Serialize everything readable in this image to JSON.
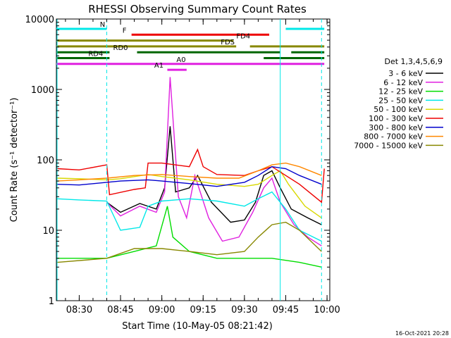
{
  "chart_data": {
    "type": "line",
    "title": "RHESSI Observing Summary Count Rates",
    "xlabel": "Start Time (10-May-05 08:21:42)",
    "ylabel": "Count Rate (s⁻¹ detector⁻¹)",
    "footer": "16-Oct-2021 20:28",
    "y_scale": "log",
    "ylim": [
      1,
      10000
    ],
    "xlim": [
      "08:21:42",
      "10:01"
    ],
    "x_ticks": [
      "08:30",
      "08:45",
      "09:00",
      "09:15",
      "09:30",
      "09:45",
      "10:00"
    ],
    "y_ticks": [
      "1",
      "10",
      "100",
      "1000",
      "10000"
    ],
    "legend_title": "Det 1,3,4,5,6,9",
    "legend_position": "right",
    "series": [
      {
        "name": "3 - 6 keV",
        "color": "#000000",
        "points": [
          [
            "08:40",
            25
          ],
          [
            "08:45",
            18
          ],
          [
            "08:52",
            24
          ],
          [
            "08:58",
            20
          ],
          [
            "09:01",
            40
          ],
          [
            "09:03",
            300
          ],
          [
            "09:05",
            35
          ],
          [
            "09:10",
            40
          ],
          [
            "09:13",
            60
          ],
          [
            "09:18",
            25
          ],
          [
            "09:25",
            13
          ],
          [
            "09:30",
            14
          ],
          [
            "09:34",
            25
          ],
          [
            "09:37",
            60
          ],
          [
            "09:40",
            70
          ],
          [
            "09:43",
            40
          ],
          [
            "09:47",
            20
          ],
          [
            "09:53",
            15
          ],
          [
            "09:58",
            12
          ]
        ]
      },
      {
        "name": "6 - 12 keV",
        "color": "#e020e0",
        "points": [
          [
            "08:40",
            25
          ],
          [
            "08:45",
            16
          ],
          [
            "08:52",
            22
          ],
          [
            "08:58",
            18
          ],
          [
            "09:01",
            35
          ],
          [
            "09:03",
            1500
          ],
          [
            "09:06",
            30
          ],
          [
            "09:09",
            15
          ],
          [
            "09:12",
            60
          ],
          [
            "09:17",
            15
          ],
          [
            "09:22",
            7
          ],
          [
            "09:28",
            8
          ],
          [
            "09:33",
            18
          ],
          [
            "09:37",
            40
          ],
          [
            "09:40",
            55
          ],
          [
            "09:43",
            25
          ],
          [
            "09:48",
            12
          ],
          [
            "09:53",
            8
          ],
          [
            "09:58",
            6
          ]
        ]
      },
      {
        "name": "12 - 25 keV",
        "color": "#00dd00",
        "points": [
          [
            "08:22",
            4
          ],
          [
            "08:40",
            4
          ],
          [
            "08:50",
            5
          ],
          [
            "08:58",
            6
          ],
          [
            "09:02",
            22
          ],
          [
            "09:04",
            8
          ],
          [
            "09:10",
            5
          ],
          [
            "09:20",
            4
          ],
          [
            "09:30",
            4
          ],
          [
            "09:40",
            4
          ],
          [
            "09:50",
            3.5
          ],
          [
            "09:58",
            3
          ]
        ]
      },
      {
        "name": "25 - 50 keV",
        "color": "#00e8e8",
        "points": [
          [
            "08:22",
            28
          ],
          [
            "08:30",
            27
          ],
          [
            "08:40",
            26
          ],
          [
            "08:45",
            10
          ],
          [
            "08:52",
            11
          ],
          [
            "08:55",
            22
          ],
          [
            "09:00",
            26
          ],
          [
            "09:10",
            28
          ],
          [
            "09:20",
            26
          ],
          [
            "09:30",
            22
          ],
          [
            "09:35",
            28
          ],
          [
            "09:40",
            35
          ],
          [
            "09:45",
            20
          ],
          [
            "09:50",
            10
          ],
          [
            "09:58",
            7
          ]
        ]
      },
      {
        "name": "50 - 100 keV",
        "color": "#d8d800",
        "points": [
          [
            "08:22",
            55
          ],
          [
            "08:30",
            54
          ],
          [
            "08:40",
            52
          ],
          [
            "08:45",
            54
          ],
          [
            "08:55",
            62
          ],
          [
            "09:00",
            58
          ],
          [
            "09:10",
            52
          ],
          [
            "09:20",
            45
          ],
          [
            "09:30",
            42
          ],
          [
            "09:35",
            45
          ],
          [
            "09:40",
            60
          ],
          [
            "09:43",
            70
          ],
          [
            "09:46",
            45
          ],
          [
            "09:52",
            22
          ],
          [
            "09:58",
            15
          ]
        ]
      },
      {
        "name": "100 - 300 keV",
        "color": "#ee0000",
        "points": [
          [
            "08:22",
            75
          ],
          [
            "08:30",
            72
          ],
          [
            "08:40",
            85
          ],
          [
            "08:41",
            32
          ],
          [
            "08:50",
            38
          ],
          [
            "08:54",
            40
          ],
          [
            "08:55",
            90
          ],
          [
            "09:00",
            90
          ],
          [
            "09:10",
            80
          ],
          [
            "09:13",
            140
          ],
          [
            "09:15",
            80
          ],
          [
            "09:20",
            62
          ],
          [
            "09:30",
            60
          ],
          [
            "09:35",
            70
          ],
          [
            "09:40",
            80
          ],
          [
            "09:50",
            45
          ],
          [
            "09:58",
            25
          ],
          [
            "09:59",
            75
          ]
        ]
      },
      {
        "name": "300 - 800 keV",
        "color": "#0000cc",
        "points": [
          [
            "08:22",
            45
          ],
          [
            "08:30",
            44
          ],
          [
            "08:40",
            48
          ],
          [
            "08:45",
            50
          ],
          [
            "08:55",
            52
          ],
          [
            "09:00",
            50
          ],
          [
            "09:10",
            46
          ],
          [
            "09:20",
            42
          ],
          [
            "09:30",
            48
          ],
          [
            "09:35",
            60
          ],
          [
            "09:40",
            80
          ],
          [
            "09:45",
            75
          ],
          [
            "09:50",
            60
          ],
          [
            "09:58",
            45
          ]
        ]
      },
      {
        "name": "800 - 7000 keV",
        "color": "#ff8800",
        "points": [
          [
            "08:22",
            50
          ],
          [
            "08:30",
            52
          ],
          [
            "08:40",
            55
          ],
          [
            "08:50",
            60
          ],
          [
            "09:00",
            62
          ],
          [
            "09:10",
            58
          ],
          [
            "09:20",
            55
          ],
          [
            "09:28",
            55
          ],
          [
            "09:35",
            70
          ],
          [
            "09:40",
            85
          ],
          [
            "09:45",
            90
          ],
          [
            "09:50",
            80
          ],
          [
            "09:58",
            60
          ]
        ]
      },
      {
        "name": "7000 - 15000 keV",
        "color": "#888800",
        "points": [
          [
            "08:22",
            3.5
          ],
          [
            "08:40",
            4
          ],
          [
            "08:50",
            5.5
          ],
          [
            "09:00",
            5.5
          ],
          [
            "09:10",
            5
          ],
          [
            "09:20",
            4.5
          ],
          [
            "09:30",
            5
          ],
          [
            "09:35",
            8
          ],
          [
            "09:40",
            12
          ],
          [
            "09:45",
            13
          ],
          [
            "09:50",
            10
          ],
          [
            "09:58",
            5
          ]
        ]
      }
    ],
    "flag_bars": [
      {
        "label": "N",
        "color": "#00e8e8",
        "level": 11,
        "segments": [
          [
            "08:21:42",
            "08:40"
          ],
          [
            "09:45",
            "09:59"
          ]
        ]
      },
      {
        "label": "F",
        "color": "#ee0000",
        "level": 10,
        "segments": [
          [
            "08:49",
            "09:39"
          ]
        ]
      },
      {
        "label": "FD4",
        "color": "#888800",
        "level": 9,
        "segments": [
          [
            "08:21:42",
            "09:26"
          ]
        ]
      },
      {
        "label": "FDS",
        "color": "#888800",
        "level": 8,
        "segments": [
          [
            "08:21:42",
            "09:27"
          ],
          [
            "09:32",
            "09:59"
          ]
        ]
      },
      {
        "label": "RD0",
        "color": "#006600",
        "level": 7,
        "segments": [
          [
            "08:21:42",
            "08:41"
          ],
          [
            "08:51",
            "09:43"
          ],
          [
            "09:47",
            "09:59"
          ]
        ]
      },
      {
        "label": "RD4",
        "color": "#006600",
        "level": 6,
        "segments": [
          [
            "08:21:42",
            "08:41"
          ],
          [
            "09:37",
            "09:59"
          ]
        ]
      },
      {
        "label": "A0",
        "color": "#e020e0",
        "level": 5,
        "segments": [
          [
            "08:21:42",
            "09:59"
          ]
        ]
      },
      {
        "label": "A1",
        "color": "#e020e0",
        "level": 4,
        "segments": [
          [
            "09:02",
            "09:09"
          ]
        ]
      }
    ],
    "vertical_markers": [
      {
        "time": "08:40",
        "color": "#00e8e8",
        "style": "dashed"
      },
      {
        "time": "09:43",
        "color": "#00e8e8",
        "style": "solid"
      },
      {
        "time": "09:58",
        "color": "#00e8e8",
        "style": "dashed"
      }
    ]
  }
}
